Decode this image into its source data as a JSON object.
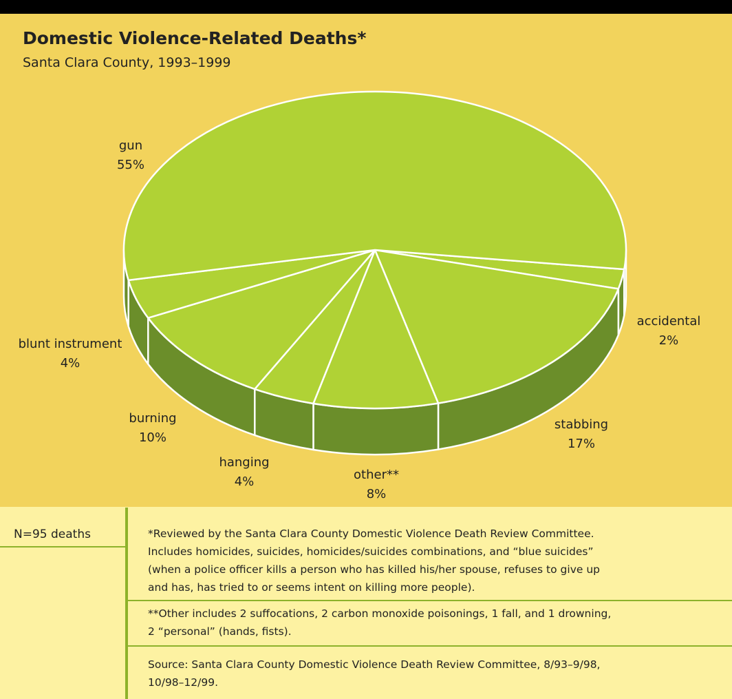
{
  "chart_data": {
    "type": "pie",
    "title": "Domestic Violence-Related Deaths*",
    "subtitle": "Santa Clara County, 1993–1999",
    "categories": [
      "accidental",
      "stabbing",
      "other**",
      "hanging",
      "burning",
      "blunt instrument",
      "gun"
    ],
    "values": [
      2,
      17,
      8,
      4,
      10,
      4,
      55
    ],
    "value_labels": [
      "2%",
      "17%",
      "8%",
      "4%",
      "10%",
      "4%",
      "55%"
    ],
    "color": "#b0d235",
    "side_color": "#6b8e2a"
  },
  "notes": {
    "count": "N=95 deaths",
    "footnote1": [
      "*Reviewed by the Santa Clara County Domestic Violence Death Review Committee.",
      "Includes homicides, suicides, homicides/suicides combinations, and “blue suicides”",
      "(when a police officer kills a person who has killed his/her spouse, refuses to give up",
      "and has, has tried to or seems intent on killing more people)."
    ],
    "footnote2": [
      "**Other includes 2 suffocations, 2 carbon monoxide poisonings, 1 fall, and 1 drowning,",
      "2 “personal” (hands, fists)."
    ],
    "source": [
      "Source: Santa Clara County Domestic Violence Death Review Committee, 8/93–9/98,",
      "10/98–12/99."
    ]
  }
}
